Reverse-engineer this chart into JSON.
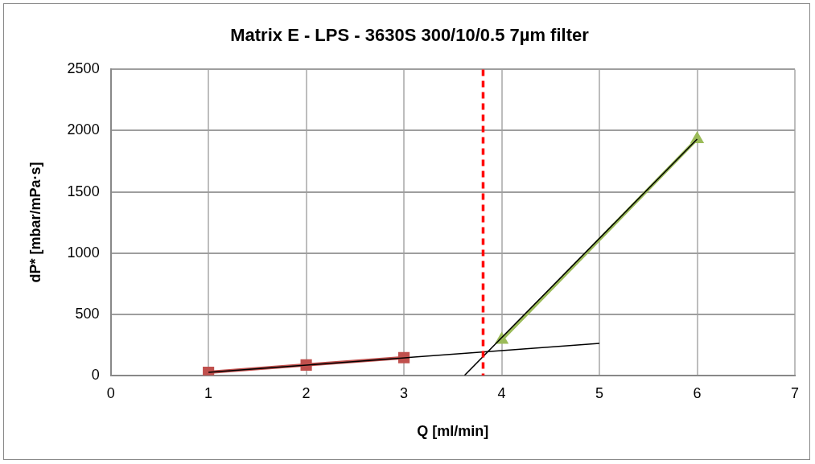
{
  "chart_data": {
    "type": "scatter",
    "title": "Matrix E - LPS - 3630S 300/10/0.5 7µm filter",
    "xlabel": "Q [ml/min]",
    "ylabel": "dP* [mbar/mPa·s]",
    "xlim": [
      0,
      7
    ],
    "xticks": [
      0,
      1,
      2,
      3,
      4,
      5,
      6,
      7
    ],
    "ylim": [
      0,
      2500
    ],
    "yticks": [
      0,
      500,
      1000,
      1500,
      2000,
      2500
    ],
    "grid": true,
    "series": [
      {
        "type": "line",
        "color": "#c0504d",
        "marker": "square",
        "x": [
          1,
          2,
          3
        ],
        "values": [
          25,
          85,
          145
        ]
      },
      {
        "type": "line",
        "color": "#9bbb59",
        "marker": "triangle",
        "x": [
          4,
          6
        ],
        "values": [
          291,
          1931
        ]
      },
      {
        "type": "line",
        "color": "#000000",
        "marker": "none",
        "x": [
          1,
          5
        ],
        "values": [
          25,
          261
        ]
      },
      {
        "type": "line",
        "color": "#000000",
        "marker": "none",
        "x": [
          3.62,
          6
        ],
        "values": [
          0,
          1931
        ]
      }
    ],
    "ref_lines": [
      {
        "axis": "x",
        "value": 3.81,
        "color": "#ff0000",
        "line_style": "dashed"
      }
    ]
  }
}
